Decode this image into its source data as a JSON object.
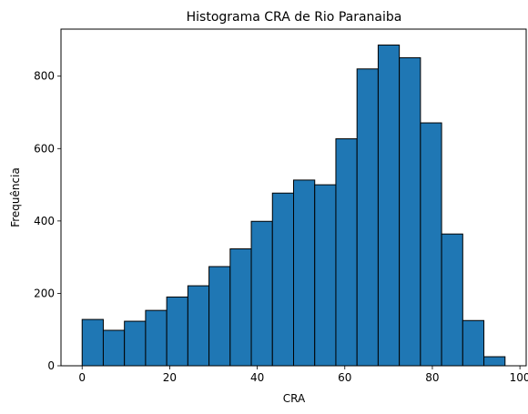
{
  "chart_data": {
    "type": "bar",
    "title": "Histograma CRA de Rio Paranaiba",
    "xlabel": "CRA",
    "ylabel": "Frequência",
    "bin_edges": [
      0,
      4.83,
      9.66,
      14.49,
      19.32,
      24.15,
      28.98,
      33.81,
      38.64,
      43.47,
      48.3,
      53.13,
      57.96,
      62.79,
      67.62,
      72.45,
      77.28,
      82.11,
      86.94,
      91.77,
      96.6
    ],
    "values": [
      128,
      98,
      123,
      153,
      190,
      221,
      274,
      323,
      399,
      477,
      513,
      500,
      627,
      820,
      886,
      851,
      671,
      364,
      125,
      25
    ],
    "xlim": [
      -4.83,
      101.43
    ],
    "ylim": [
      0,
      930
    ],
    "xticks": [
      0,
      20,
      40,
      60,
      80,
      100
    ],
    "xtick_labels": [
      "0",
      "20",
      "40",
      "60",
      "80",
      "100"
    ],
    "yticks": [
      0,
      200,
      400,
      600,
      800
    ],
    "ytick_labels": [
      "0",
      "200",
      "400",
      "600",
      "800"
    ],
    "grid": false,
    "legend": "none",
    "bar_color": "#1f77b4",
    "edge_color": "#000000"
  }
}
